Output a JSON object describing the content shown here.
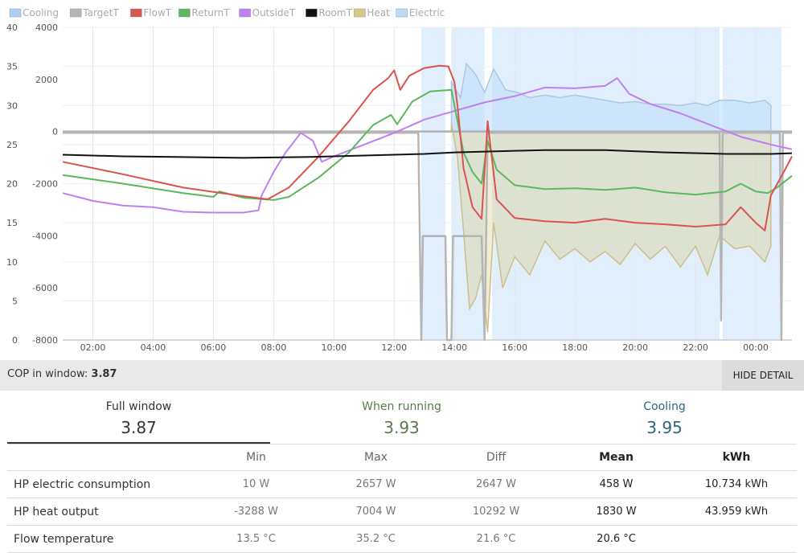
{
  "chart_data": {
    "type": "line",
    "legend": [
      {
        "name": "Cooling",
        "color": "#a9d0f5"
      },
      {
        "name": "TargetT",
        "color": "#b5b5b5"
      },
      {
        "name": "FlowT",
        "color": "#d9534f"
      },
      {
        "name": "ReturnT",
        "color": "#5cb85c"
      },
      {
        "name": "OutsideT",
        "color": "#c07ff0"
      },
      {
        "name": "RoomT",
        "color": "#111111"
      },
      {
        "name": "Heat",
        "color": "#d8c884"
      },
      {
        "name": "Electric",
        "color": "#bcdcf8"
      }
    ],
    "legend_position": "top-left",
    "x_ticks": [
      "02:00",
      "04:00",
      "06:00",
      "08:00",
      "10:00",
      "12:00",
      "14:00",
      "16:00",
      "18:00",
      "20:00",
      "22:00",
      "00:00"
    ],
    "x_range_hours": [
      1.0,
      25.2
    ],
    "y_left_ticks": [
      "40",
      "35",
      "30",
      "25",
      "20",
      "15",
      "10",
      "5",
      "0"
    ],
    "y_left_range": [
      0,
      40
    ],
    "y_right_ticks": [
      "4000",
      "2000",
      "0",
      "-2000",
      "-4000",
      "-6000",
      "-8000"
    ],
    "y_right_range": [
      -8000,
      4000
    ],
    "grid": true,
    "cooling_periods": [
      [
        12.9,
        13.7
      ],
      [
        13.9,
        15.0
      ],
      [
        15.25,
        22.8
      ],
      [
        22.9,
        24.85
      ]
    ],
    "series": [
      {
        "name": "FlowT",
        "axis": "left",
        "points": [
          [
            1.0,
            22.8
          ],
          [
            3.0,
            21.2
          ],
          [
            5.0,
            19.5
          ],
          [
            7.0,
            18.4
          ],
          [
            7.8,
            18.0
          ],
          [
            8.5,
            19.5
          ],
          [
            9.5,
            23.5
          ],
          [
            10.5,
            28.0
          ],
          [
            11.3,
            32.0
          ],
          [
            11.8,
            33.5
          ],
          [
            12.0,
            34.5
          ],
          [
            12.2,
            32.0
          ],
          [
            12.5,
            33.8
          ],
          [
            13.0,
            34.8
          ],
          [
            13.5,
            35.1
          ],
          [
            13.8,
            35.0
          ],
          [
            14.0,
            33.0
          ],
          [
            14.1,
            30.0
          ],
          [
            14.3,
            22.0
          ],
          [
            14.6,
            17.0
          ],
          [
            14.9,
            15.5
          ],
          [
            15.1,
            28.0
          ],
          [
            15.4,
            18.0
          ],
          [
            16.0,
            15.6
          ],
          [
            17.0,
            15.2
          ],
          [
            18.0,
            15.0
          ],
          [
            19.0,
            15.5
          ],
          [
            20.0,
            15.0
          ],
          [
            21.0,
            14.8
          ],
          [
            22.0,
            14.5
          ],
          [
            23.0,
            14.8
          ],
          [
            23.5,
            17.0
          ],
          [
            24.0,
            15.0
          ],
          [
            24.3,
            14.0
          ],
          [
            24.5,
            18.5
          ],
          [
            25.0,
            22.0
          ],
          [
            25.2,
            23.5
          ]
        ]
      },
      {
        "name": "ReturnT",
        "axis": "left",
        "points": [
          [
            1.0,
            21.1
          ],
          [
            3.0,
            20.0
          ],
          [
            5.0,
            18.8
          ],
          [
            6.0,
            18.3
          ],
          [
            6.2,
            19.0
          ],
          [
            7.0,
            18.2
          ],
          [
            8.0,
            17.9
          ],
          [
            8.5,
            18.3
          ],
          [
            9.5,
            20.8
          ],
          [
            10.5,
            24.0
          ],
          [
            11.3,
            27.5
          ],
          [
            11.9,
            28.8
          ],
          [
            12.1,
            27.6
          ],
          [
            12.6,
            30.5
          ],
          [
            13.2,
            31.8
          ],
          [
            13.9,
            32.0
          ],
          [
            14.1,
            28.0
          ],
          [
            14.3,
            24.0
          ],
          [
            14.6,
            21.5
          ],
          [
            14.9,
            20.0
          ],
          [
            15.1,
            25.5
          ],
          [
            15.4,
            21.8
          ],
          [
            16.0,
            19.8
          ],
          [
            17.0,
            19.3
          ],
          [
            18.0,
            19.4
          ],
          [
            19.0,
            19.2
          ],
          [
            20.0,
            19.5
          ],
          [
            21.0,
            18.9
          ],
          [
            22.0,
            18.6
          ],
          [
            23.0,
            19.0
          ],
          [
            23.5,
            20.0
          ],
          [
            24.0,
            19.0
          ],
          [
            24.4,
            18.8
          ],
          [
            24.7,
            19.5
          ],
          [
            25.2,
            21.0
          ]
        ]
      },
      {
        "name": "OutsideT",
        "axis": "left",
        "points": [
          [
            1.0,
            18.8
          ],
          [
            2.0,
            17.8
          ],
          [
            3.0,
            17.2
          ],
          [
            4.0,
            17.0
          ],
          [
            5.0,
            16.4
          ],
          [
            6.0,
            16.3
          ],
          [
            7.0,
            16.3
          ],
          [
            7.5,
            16.6
          ],
          [
            7.6,
            18.5
          ],
          [
            8.0,
            21.5
          ],
          [
            8.4,
            24.0
          ],
          [
            8.9,
            26.5
          ],
          [
            9.3,
            25.5
          ],
          [
            9.6,
            22.8
          ],
          [
            10.0,
            23.5
          ],
          [
            11.0,
            25.0
          ],
          [
            12.0,
            26.5
          ],
          [
            13.0,
            28.2
          ],
          [
            14.0,
            29.3
          ],
          [
            15.0,
            30.4
          ],
          [
            16.0,
            31.2
          ],
          [
            17.0,
            32.3
          ],
          [
            18.0,
            32.2
          ],
          [
            19.0,
            32.5
          ],
          [
            19.4,
            33.5
          ],
          [
            19.8,
            31.5
          ],
          [
            20.5,
            30.2
          ],
          [
            21.5,
            29.0
          ],
          [
            22.5,
            27.5
          ],
          [
            23.5,
            26.0
          ],
          [
            24.5,
            25.0
          ],
          [
            25.2,
            24.4
          ]
        ]
      },
      {
        "name": "RoomT",
        "axis": "left",
        "points": [
          [
            1.0,
            23.7
          ],
          [
            3.0,
            23.5
          ],
          [
            5.0,
            23.4
          ],
          [
            7.0,
            23.3
          ],
          [
            9.0,
            23.4
          ],
          [
            11.0,
            23.6
          ],
          [
            13.0,
            23.8
          ],
          [
            14.0,
            24.0
          ],
          [
            15.0,
            24.1
          ],
          [
            17.0,
            24.3
          ],
          [
            19.0,
            24.3
          ],
          [
            21.0,
            24.0
          ],
          [
            23.0,
            23.8
          ],
          [
            24.5,
            23.8
          ],
          [
            25.2,
            23.9
          ]
        ]
      },
      {
        "name": "TargetT",
        "axis": "left",
        "points": [
          [
            1.0,
            26.5
          ],
          [
            12.8,
            26.5
          ],
          [
            12.9,
            0
          ],
          [
            12.95,
            13.3
          ],
          [
            13.7,
            13.3
          ],
          [
            13.75,
            0
          ],
          [
            13.9,
            0
          ],
          [
            13.95,
            13.3
          ],
          [
            14.9,
            13.3
          ],
          [
            15.0,
            0
          ],
          [
            15.1,
            26.5
          ],
          [
            22.8,
            26.5
          ],
          [
            22.85,
            2.5
          ],
          [
            22.9,
            26.5
          ],
          [
            24.8,
            26.5
          ],
          [
            24.85,
            0
          ],
          [
            24.9,
            26.5
          ],
          [
            25.2,
            26.5
          ]
        ]
      }
    ],
    "heat_area": {
      "name": "Heat",
      "axis": "right",
      "points": [
        [
          13.9,
          300
        ],
        [
          14.1,
          -1000
        ],
        [
          14.3,
          -3800
        ],
        [
          14.5,
          -6800
        ],
        [
          14.7,
          -6400
        ],
        [
          14.9,
          -5500
        ],
        [
          15.1,
          -7700
        ],
        [
          15.3,
          -3500
        ],
        [
          15.6,
          -6000
        ],
        [
          16.0,
          -4800
        ],
        [
          16.5,
          -5500
        ],
        [
          17.0,
          -4200
        ],
        [
          17.5,
          -4900
        ],
        [
          18.0,
          -4500
        ],
        [
          18.5,
          -5000
        ],
        [
          19.0,
          -4600
        ],
        [
          19.5,
          -5100
        ],
        [
          20.0,
          -4300
        ],
        [
          20.5,
          -4900
        ],
        [
          21.0,
          -4400
        ],
        [
          21.5,
          -5200
        ],
        [
          22.0,
          -4400
        ],
        [
          22.4,
          -5500
        ],
        [
          22.8,
          -4000
        ],
        [
          23.3,
          -4500
        ],
        [
          23.8,
          -4400
        ],
        [
          24.3,
          -5000
        ],
        [
          24.5,
          -4400
        ]
      ]
    },
    "electric_area": {
      "name": "Electric",
      "axis": "right",
      "points": [
        [
          13.9,
          1900
        ],
        [
          14.2,
          1300
        ],
        [
          14.4,
          2600
        ],
        [
          14.7,
          2200
        ],
        [
          15.0,
          1500
        ],
        [
          15.3,
          2400
        ],
        [
          15.7,
          1600
        ],
        [
          16.1,
          1500
        ],
        [
          16.5,
          1300
        ],
        [
          17.0,
          1400
        ],
        [
          17.5,
          1300
        ],
        [
          18.0,
          1400
        ],
        [
          18.5,
          1300
        ],
        [
          19.0,
          1200
        ],
        [
          19.5,
          1100
        ],
        [
          20.0,
          1150
        ],
        [
          20.5,
          1050
        ],
        [
          21.0,
          1050
        ],
        [
          21.5,
          1000
        ],
        [
          22.0,
          1100
        ],
        [
          22.4,
          1000
        ],
        [
          22.8,
          1200
        ],
        [
          23.3,
          1200
        ],
        [
          23.8,
          1100
        ],
        [
          24.3,
          1200
        ],
        [
          24.5,
          1000
        ]
      ]
    }
  },
  "summary": {
    "cop_label": "COP in window:",
    "cop_value": "3.87",
    "hide_button": "HIDE DETAIL"
  },
  "tabs": [
    {
      "label": "Full window",
      "value": "3.87",
      "label_color": "#333333",
      "value_color": "#333333"
    },
    {
      "label": "When running",
      "value": "3.93",
      "label_color": "#5a7a50",
      "value_color": "#5a7a50"
    },
    {
      "label": "Cooling",
      "value": "3.95",
      "label_color": "#2f6680",
      "value_color": "#2f6680"
    }
  ],
  "stats": {
    "headers": [
      "",
      "Min",
      "Max",
      "Diff",
      "Mean",
      "kWh"
    ],
    "rows": [
      {
        "name": "HP electric consumption",
        "min": "10 W",
        "max": "2657 W",
        "diff": "2647 W",
        "mean": "458 W",
        "kwh": "10.734 kWh"
      },
      {
        "name": "HP heat output",
        "min": "-3288 W",
        "max": "7004 W",
        "diff": "10292 W",
        "mean": "1830 W",
        "kwh": "43.959 kWh"
      },
      {
        "name": "Flow temperature",
        "min": "13.5 °C",
        "max": "35.2 °C",
        "diff": "21.6 °C",
        "mean": "20.6 °C",
        "kwh": ""
      }
    ]
  }
}
